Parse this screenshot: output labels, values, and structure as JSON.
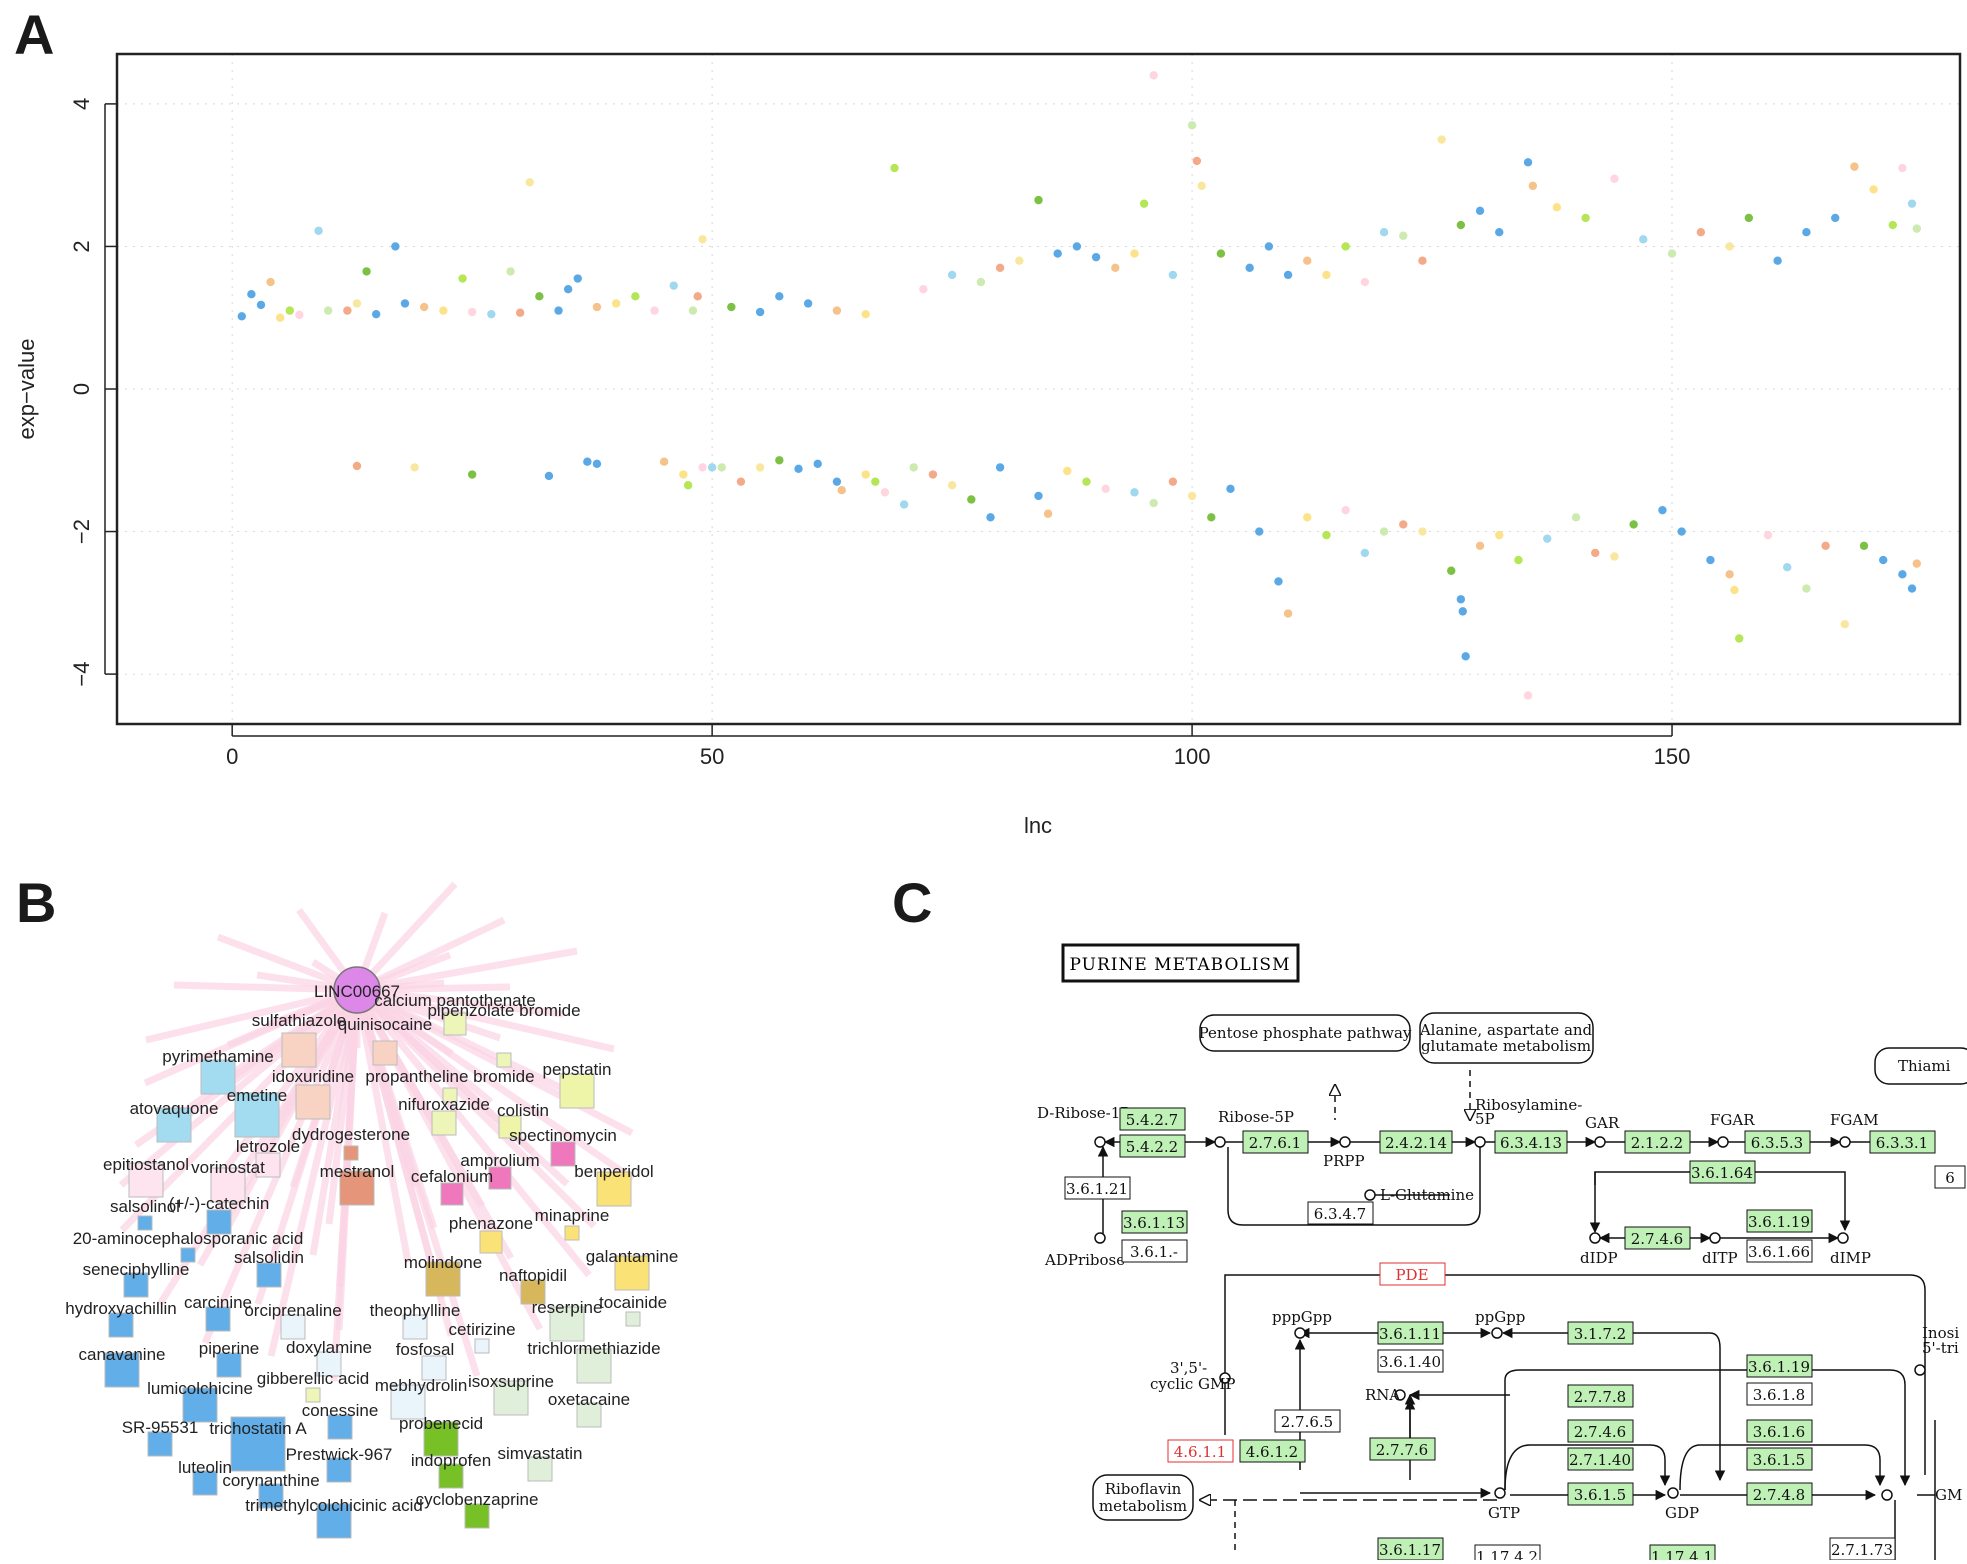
{
  "panels": {
    "a": "A",
    "b": "B",
    "c": "C"
  },
  "chart_data": [
    {
      "type": "scatter",
      "panel": "A",
      "xlabel": "lnc",
      "ylabel": "exp−value",
      "xlim": [
        -12,
        180
      ],
      "ylim": [
        -4.7,
        4.7
      ],
      "xticks": [
        0,
        50,
        100,
        150
      ],
      "yticks": [
        -4,
        -2,
        0,
        2,
        4
      ],
      "grid": true,
      "palette": [
        "#5aa9e6",
        "#5aa9e6",
        "#5aa9e6",
        "#f6c28b",
        "#fce38a",
        "#b5e655",
        "#ffd6e0",
        "#a0d8ef",
        "#cdeab0",
        "#f4a988",
        "#f9e79f",
        "#7cc144"
      ],
      "points": [
        [
          1,
          1.02
        ],
        [
          2,
          1.33
        ],
        [
          3,
          1.18
        ],
        [
          4,
          1.5
        ],
        [
          5,
          1.0
        ],
        [
          6,
          1.1
        ],
        [
          7,
          1.04
        ],
        [
          9,
          2.22
        ],
        [
          10,
          1.1
        ],
        [
          12,
          1.1
        ],
        [
          13,
          1.2
        ],
        [
          14,
          1.65
        ],
        [
          15,
          1.05
        ],
        [
          17,
          2.0
        ],
        [
          18,
          1.2
        ],
        [
          20,
          1.15
        ],
        [
          22,
          1.1
        ],
        [
          24,
          1.55
        ],
        [
          25,
          1.08
        ],
        [
          27,
          1.05
        ],
        [
          29,
          1.65
        ],
        [
          30,
          1.07
        ],
        [
          31,
          2.9
        ],
        [
          32,
          1.3
        ],
        [
          34,
          1.1
        ],
        [
          35,
          1.4
        ],
        [
          36,
          1.55
        ],
        [
          38,
          1.15
        ],
        [
          40,
          1.2
        ],
        [
          42,
          1.3
        ],
        [
          44,
          1.1
        ],
        [
          46,
          1.45
        ],
        [
          48,
          1.1
        ],
        [
          48.5,
          1.3
        ],
        [
          49,
          2.1
        ],
        [
          52,
          1.15
        ],
        [
          55,
          1.08
        ],
        [
          57,
          1.3
        ],
        [
          60,
          1.2
        ],
        [
          63,
          1.1
        ],
        [
          66,
          1.05
        ],
        [
          69,
          3.1
        ],
        [
          72,
          1.4
        ],
        [
          75,
          1.6
        ],
        [
          78,
          1.5
        ],
        [
          80,
          1.7
        ],
        [
          82,
          1.8
        ],
        [
          84,
          2.65
        ],
        [
          86,
          1.9
        ],
        [
          88,
          2.0
        ],
        [
          90,
          1.85
        ],
        [
          92,
          1.7
        ],
        [
          94,
          1.9
        ],
        [
          95,
          2.6
        ],
        [
          96,
          4.4
        ],
        [
          98,
          1.6
        ],
        [
          100,
          3.7
        ],
        [
          100.5,
          3.2
        ],
        [
          101,
          2.85
        ],
        [
          103,
          1.9
        ],
        [
          106,
          1.7
        ],
        [
          108,
          2.0
        ],
        [
          110,
          1.6
        ],
        [
          112,
          1.8
        ],
        [
          114,
          1.6
        ],
        [
          116,
          2.0
        ],
        [
          118,
          1.5
        ],
        [
          120,
          2.2
        ],
        [
          122,
          2.15
        ],
        [
          124,
          1.8
        ],
        [
          126,
          3.5
        ],
        [
          128,
          2.3
        ],
        [
          130,
          2.5
        ],
        [
          132,
          2.2
        ],
        [
          135,
          3.18
        ],
        [
          135.5,
          2.85
        ],
        [
          138,
          2.55
        ],
        [
          141,
          2.4
        ],
        [
          144,
          2.95
        ],
        [
          147,
          2.1
        ],
        [
          150,
          1.9
        ],
        [
          153,
          2.2
        ],
        [
          156,
          2.0
        ],
        [
          158,
          2.4
        ],
        [
          161,
          1.8
        ],
        [
          164,
          2.2
        ],
        [
          167,
          2.4
        ],
        [
          169,
          3.12
        ],
        [
          171,
          2.8
        ],
        [
          173,
          2.3
        ],
        [
          174,
          3.1
        ],
        [
          175,
          2.6
        ],
        [
          175.5,
          2.25
        ],
        [
          13,
          -1.08
        ],
        [
          19,
          -1.1
        ],
        [
          25,
          -1.2
        ],
        [
          33,
          -1.22
        ],
        [
          37,
          -1.02
        ],
        [
          38,
          -1.05
        ],
        [
          45,
          -1.02
        ],
        [
          47,
          -1.2
        ],
        [
          47.5,
          -1.35
        ],
        [
          49,
          -1.1
        ],
        [
          50,
          -1.1
        ],
        [
          51,
          -1.1
        ],
        [
          53,
          -1.3
        ],
        [
          55,
          -1.1
        ],
        [
          57,
          -1.0
        ],
        [
          59,
          -1.12
        ],
        [
          61,
          -1.05
        ],
        [
          63,
          -1.3
        ],
        [
          63.5,
          -1.42
        ],
        [
          66,
          -1.2
        ],
        [
          67,
          -1.3
        ],
        [
          68,
          -1.45
        ],
        [
          70,
          -1.62
        ],
        [
          71,
          -1.1
        ],
        [
          73,
          -1.2
        ],
        [
          75,
          -1.35
        ],
        [
          77,
          -1.55
        ],
        [
          79,
          -1.8
        ],
        [
          80,
          -1.1
        ],
        [
          84,
          -1.5
        ],
        [
          85,
          -1.75
        ],
        [
          87,
          -1.15
        ],
        [
          89,
          -1.3
        ],
        [
          91,
          -1.4
        ],
        [
          94,
          -1.45
        ],
        [
          96,
          -1.6
        ],
        [
          98,
          -1.3
        ],
        [
          100,
          -1.5
        ],
        [
          102,
          -1.8
        ],
        [
          104,
          -1.4
        ],
        [
          107,
          -2.0
        ],
        [
          109,
          -2.7
        ],
        [
          110,
          -3.15
        ],
        [
          112,
          -1.8
        ],
        [
          114,
          -2.05
        ],
        [
          116,
          -1.7
        ],
        [
          118,
          -2.3
        ],
        [
          120,
          -2.0
        ],
        [
          122,
          -1.9
        ],
        [
          124,
          -2.0
        ],
        [
          127,
          -2.55
        ],
        [
          128,
          -2.95
        ],
        [
          128.2,
          -3.12
        ],
        [
          128.5,
          -3.75
        ],
        [
          130,
          -2.2
        ],
        [
          132,
          -2.05
        ],
        [
          134,
          -2.4
        ],
        [
          135,
          -4.3
        ],
        [
          137,
          -2.1
        ],
        [
          140,
          -1.8
        ],
        [
          142,
          -2.3
        ],
        [
          144,
          -2.35
        ],
        [
          146,
          -1.9
        ],
        [
          149,
          -1.7
        ],
        [
          151,
          -2.0
        ],
        [
          154,
          -2.4
        ],
        [
          156,
          -2.6
        ],
        [
          156.5,
          -2.82
        ],
        [
          157,
          -3.5
        ],
        [
          160,
          -2.05
        ],
        [
          162,
          -2.5
        ],
        [
          164,
          -2.8
        ],
        [
          166,
          -2.2
        ],
        [
          168,
          -3.3
        ],
        [
          170,
          -2.2
        ],
        [
          172,
          -2.4
        ],
        [
          174,
          -2.6
        ],
        [
          175,
          -2.8
        ],
        [
          175.5,
          -2.45
        ]
      ]
    },
    {
      "type": "network",
      "panel": "B",
      "hub": {
        "label": "LINC00667",
        "color": "#dd88e8"
      },
      "nodes": [
        {
          "label": "sulfathiazole",
          "color": "#f8d3c4"
        },
        {
          "label": "calcium pantothenate",
          "color": "#eef5b8"
        },
        {
          "label": "quinisocaine",
          "color": "#f8d3c4"
        },
        {
          "label": "pipenzolate bromide",
          "color": "#eef5b8"
        },
        {
          "label": "pyrimethamine",
          "color": "#a3dcf0"
        },
        {
          "label": "idoxuridine",
          "color": "#f8d3c4"
        },
        {
          "label": "propantheline bromide",
          "color": "#eef5b8"
        },
        {
          "label": "pepstatin",
          "color": "#eef5a8"
        },
        {
          "label": "atovaquone",
          "color": "#a3dcf0"
        },
        {
          "label": "emetine",
          "color": "#a3dcf0"
        },
        {
          "label": "nifuroxazide",
          "color": "#eef5b8"
        },
        {
          "label": "colistin",
          "color": "#eef5a8"
        },
        {
          "label": "dydrogesterone",
          "color": "#e4957a"
        },
        {
          "label": "spectinomycin",
          "color": "#ee78bb"
        },
        {
          "label": "letrozole",
          "color": "#fde4ee"
        },
        {
          "label": "amprolium",
          "color": "#ee78bb"
        },
        {
          "label": "epitiostanol",
          "color": "#fde4ee"
        },
        {
          "label": "vorinostat",
          "color": "#fde4ee"
        },
        {
          "label": "mestranol",
          "color": "#e4957a"
        },
        {
          "label": "cefalonium",
          "color": "#ee78bb"
        },
        {
          "label": "benperidol",
          "color": "#fbe277"
        },
        {
          "label": "salsolinol",
          "color": "#62aee8"
        },
        {
          "label": "(+/-)-catechin",
          "color": "#62aee8"
        },
        {
          "label": "20-aminocephalosporanic acid",
          "color": "#62aee8"
        },
        {
          "label": "phenazone",
          "color": "#fbe277"
        },
        {
          "label": "minaprine",
          "color": "#fbe277"
        },
        {
          "label": "salsolidin",
          "color": "#62aee8"
        },
        {
          "label": "molindone",
          "color": "#d7b75c"
        },
        {
          "label": "galantamine",
          "color": "#fbe277"
        },
        {
          "label": "seneciphylline",
          "color": "#62aee8"
        },
        {
          "label": "naftopidil",
          "color": "#d7b75c"
        },
        {
          "label": "hydroxyachillin",
          "color": "#62aee8"
        },
        {
          "label": "carcinine",
          "color": "#62aee8"
        },
        {
          "label": "orciprenaline",
          "color": "#eaf4fb"
        },
        {
          "label": "theophylline",
          "color": "#eaf4fb"
        },
        {
          "label": "reserpine",
          "color": "#e0efda"
        },
        {
          "label": "tocainide",
          "color": "#e0efda"
        },
        {
          "label": "cetirizine",
          "color": "#eaf4fb"
        },
        {
          "label": "canavanine",
          "color": "#62aee8"
        },
        {
          "label": "piperine",
          "color": "#62aee8"
        },
        {
          "label": "doxylamine",
          "color": "#eaf4fb"
        },
        {
          "label": "fosfosal",
          "color": "#eaf4fb"
        },
        {
          "label": "trichlormethiazide",
          "color": "#e0efda"
        },
        {
          "label": "gibberellic acid",
          "color": "#eef5b8"
        },
        {
          "label": "isoxsuprine",
          "color": "#e0efda"
        },
        {
          "label": "lumicolchicine",
          "color": "#62aee8"
        },
        {
          "label": "mebhydrolin",
          "color": "#eaf4fb"
        },
        {
          "label": "oxetacaine",
          "color": "#e0efda"
        },
        {
          "label": "conessine",
          "color": "#62aee8"
        },
        {
          "label": "SR-95531",
          "color": "#62aee8"
        },
        {
          "label": "trichostatin A",
          "color": "#62aee8"
        },
        {
          "label": "probenecid",
          "color": "#77c026"
        },
        {
          "label": "Prestwick-967",
          "color": "#62aee8"
        },
        {
          "label": "simvastatin",
          "color": "#e0efda"
        },
        {
          "label": "indoprofen",
          "color": "#77c026"
        },
        {
          "label": "luteolin",
          "color": "#62aee8"
        },
        {
          "label": "corynanthine",
          "color": "#62aee8"
        },
        {
          "label": "trimethylcolchicinic acid",
          "color": "#62aee8"
        },
        {
          "label": "cyclobenzaprine",
          "color": "#77c026"
        }
      ]
    }
  ],
  "pathway": {
    "title": "PURINE METABOLISM",
    "maps": [
      "Pentose phosphate pathway",
      "Alanine, aspartate and",
      "glutamate metabolism",
      "Thiami",
      "Riboflavin",
      "metabolism",
      "Inosi",
      "5'-tri"
    ],
    "compounds": [
      "D-Ribose-1P",
      "ADPribose",
      "Ribose-5P",
      "PRPP",
      "L-Glutamine",
      "Ribosylamine-",
      "5P",
      "GAR",
      "FGAR",
      "FGAM",
      "dIDP",
      "dITP",
      "dIMP",
      "pppGpp",
      "ppGpp",
      "3',5'-",
      "cyclic GMP",
      "RNA",
      "GTP",
      "GDP",
      "GM"
    ],
    "enzymes": [
      "5.4.2.7",
      "5.4.2.2",
      "3.6.1.21",
      "3.6.1.13",
      "3.6.1.-",
      "2.7.6.1",
      "2.4.2.14",
      "6.3.4.7",
      "6.3.4.13",
      "2.1.2.2",
      "6.3.5.3",
      "6.3.3.1",
      "3.6.1.64",
      "2.7.4.6",
      "3.6.1.19",
      "3.6.1.66",
      "6",
      "PDE",
      "3.6.1.11",
      "3.6.1.40",
      "3.1.7.2",
      "3.6.1.19",
      "3.6.1.8",
      "2.7.6.5",
      "2.7.7.8",
      "4.6.1.1",
      "4.6.1.2",
      "2.7.7.6",
      "2.7.4.6",
      "2.7.1.40",
      "3.6.1.5",
      "3.6.1.6",
      "3.6.1.5",
      "2.7.4.8",
      "3.6.1.17",
      "1.17.4.2",
      "1.17.4.1",
      "2.7.1.73"
    ]
  }
}
